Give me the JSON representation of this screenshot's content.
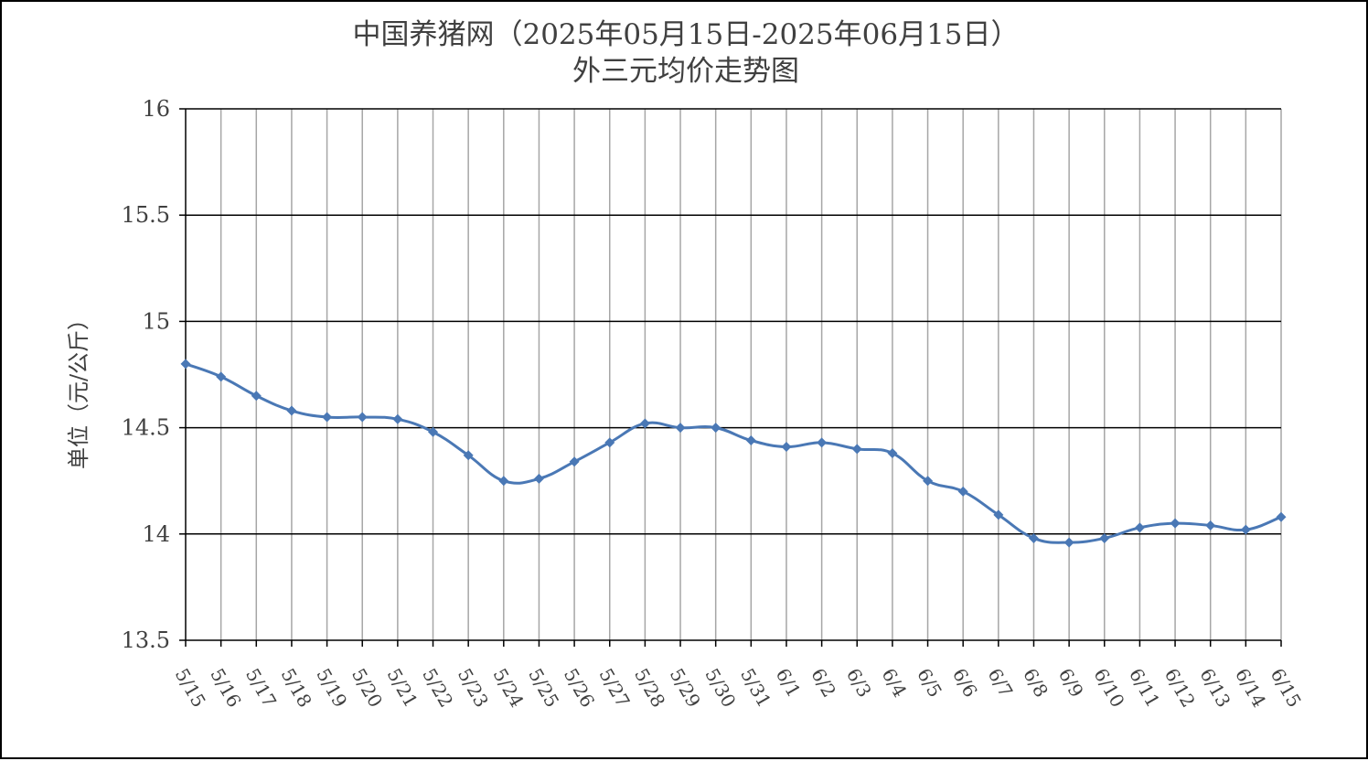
{
  "chart_data": {
    "type": "line",
    "title": "中国养猪网（2025年05月15日-2025年06月15日）",
    "subtitle": "外三元均价走势图",
    "xlabel": "",
    "ylabel": "单位（元/公斤）",
    "ylim": [
      13.5,
      16
    ],
    "yticks": [
      16,
      15.5,
      15,
      14.5,
      14,
      13.5
    ],
    "ytick_labels": [
      "16",
      "15.5",
      "15",
      "14.5",
      "14",
      "13.5"
    ],
    "grid": "horizontal and vertical",
    "categories": [
      "5/15",
      "5/16",
      "5/17",
      "5/18",
      "5/19",
      "5/20",
      "5/21",
      "5/22",
      "5/23",
      "5/24",
      "5/25",
      "5/26",
      "5/27",
      "5/28",
      "5/29",
      "5/30",
      "5/31",
      "6/1",
      "6/2",
      "6/3",
      "6/4",
      "6/5",
      "6/6",
      "6/7",
      "6/8",
      "6/9",
      "6/10",
      "6/11",
      "6/12",
      "6/13",
      "6/14",
      "6/15"
    ],
    "series": [
      {
        "values": [
          14.8,
          14.74,
          14.65,
          14.58,
          14.55,
          14.55,
          14.54,
          14.48,
          14.37,
          14.25,
          14.26,
          14.34,
          14.43,
          14.52,
          14.5,
          14.5,
          14.44,
          14.41,
          14.43,
          14.4,
          14.38,
          14.25,
          14.2,
          14.09,
          13.98,
          13.96,
          13.98,
          14.03,
          14.05,
          14.04,
          14.02,
          14.08
        ],
        "color": "#4a78b5"
      }
    ]
  }
}
